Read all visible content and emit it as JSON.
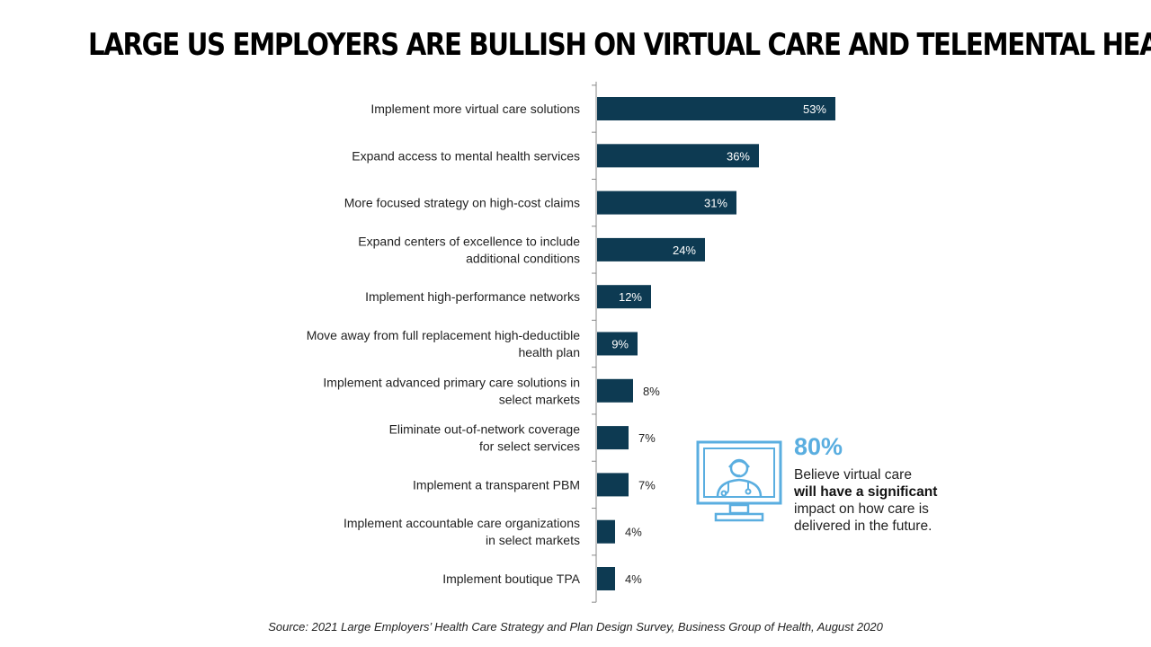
{
  "title": "LARGE US EMPLOYERS ARE BULLISH ON VIRTUAL CARE AND TELEMENTAL HEALTH",
  "chart_data": {
    "type": "bar",
    "orientation": "horizontal",
    "categories": [
      [
        "Implement more virtual care solutions"
      ],
      [
        "Expand access to mental health services"
      ],
      [
        "More focused strategy on high-cost claims"
      ],
      [
        "Expand centers of excellence to include",
        "additional conditions"
      ],
      [
        "Implement high-performance networks"
      ],
      [
        "Move away from full replacement high-deductible",
        "health plan"
      ],
      [
        "Implement advanced primary care solutions in",
        "select markets"
      ],
      [
        "Eliminate out-of-network coverage",
        "for select services"
      ],
      [
        "Implement a transparent PBM"
      ],
      [
        "Implement accountable care organizations",
        "in select markets"
      ],
      [
        "Implement boutique TPA"
      ]
    ],
    "values": [
      53,
      36,
      31,
      24,
      12,
      9,
      8,
      7,
      7,
      4,
      4
    ],
    "value_labels": [
      "53%",
      "36%",
      "31%",
      "24%",
      "12%",
      "9%",
      "8%",
      "7%",
      "7%",
      "4%",
      "4%"
    ],
    "xlim": [
      0,
      100
    ],
    "bar_color": "#0d3a52",
    "grid": false
  },
  "callout": {
    "icon": "telehealth-monitor-icon",
    "accent_color": "#5aaee0",
    "value": "80%",
    "text_plain_1": "Believe virtual care",
    "text_bold": "will have a significant",
    "text_plain_2": "impact on how care is delivered in the future."
  },
  "source": "Source: 2021 Large Employers’ Health Care Strategy and Plan Design Survey, Business Group of Health, August 2020"
}
